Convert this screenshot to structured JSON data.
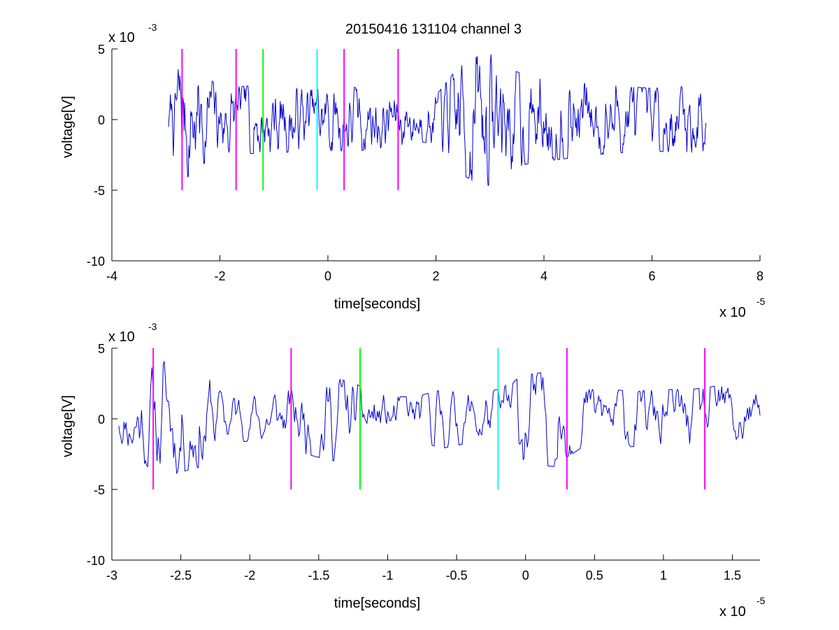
{
  "chart_data": [
    {
      "type": "line",
      "title": "20150416 131104 channel 3",
      "xlabel": "time[seconds]",
      "ylabel": "voltage[V]",
      "x_multiplier": "x 10",
      "x_exponent": "-5",
      "y_multiplier": "x 10",
      "y_exponent": "-3",
      "xlim": [
        -4,
        8
      ],
      "ylim": [
        -10,
        5
      ],
      "xticks": [
        -4,
        -2,
        0,
        2,
        4,
        6,
        8
      ],
      "xtick_labels": [
        "-4",
        "-2",
        "0",
        "2",
        "4",
        "6",
        "8"
      ],
      "yticks": [
        -10,
        -5,
        0,
        5
      ],
      "ytick_labels": [
        "-10",
        "-5",
        "0",
        "5"
      ],
      "grid": false,
      "signal": {
        "color": "#0000cc",
        "x_start": -2.95,
        "x_end": 7.0,
        "envelope": [
          [
            -2.95,
            1.2
          ],
          [
            -2.7,
            3.4
          ],
          [
            -2.4,
            2.6
          ],
          [
            -2.0,
            1.8
          ],
          [
            -1.6,
            1.8
          ],
          [
            -1.2,
            1.9
          ],
          [
            -0.8,
            1.8
          ],
          [
            -0.4,
            1.6
          ],
          [
            0.0,
            1.7
          ],
          [
            0.4,
            1.8
          ],
          [
            0.8,
            1.6
          ],
          [
            1.2,
            1.5
          ],
          [
            1.6,
            1.2
          ],
          [
            2.0,
            1.3
          ],
          [
            2.4,
            2.8
          ],
          [
            2.7,
            3.4
          ],
          [
            3.0,
            3.6
          ],
          [
            3.3,
            2.8
          ],
          [
            3.7,
            2.4
          ],
          [
            4.2,
            2.2
          ],
          [
            5.0,
            1.9
          ],
          [
            6.0,
            1.7
          ],
          [
            6.9,
            1.9
          ],
          [
            7.0,
            1.5
          ]
        ]
      },
      "markers": [
        {
          "x": -2.7,
          "color": "#ff00ff"
        },
        {
          "x": -1.7,
          "color": "#ff00ff"
        },
        {
          "x": -1.2,
          "color": "#00ff00"
        },
        {
          "x": -0.2,
          "color": "#00ffff"
        },
        {
          "x": 0.3,
          "color": "#ff00ff"
        },
        {
          "x": 1.3,
          "color": "#ff00ff"
        }
      ],
      "marker_yrange": [
        -5,
        5
      ]
    },
    {
      "type": "line",
      "title": "",
      "xlabel": "time[seconds]",
      "ylabel": "voltage[V]",
      "x_multiplier": "x 10",
      "x_exponent": "-5",
      "y_multiplier": "x 10",
      "y_exponent": "-3",
      "xlim": [
        -3.0,
        1.7
      ],
      "ylim": [
        -10,
        5
      ],
      "xticks": [
        -3,
        -2.5,
        -2,
        -1.5,
        -1,
        -0.5,
        0,
        0.5,
        1,
        1.5
      ],
      "xtick_labels": [
        "-3",
        "-2.5",
        "-2",
        "-1.5",
        "-1",
        "-0.5",
        "0",
        "0.5",
        "1",
        "1.5"
      ],
      "yticks": [
        -10,
        -5,
        0,
        5
      ],
      "ytick_labels": [
        "-10",
        "-5",
        "0",
        "5"
      ],
      "grid": false,
      "signal": {
        "color": "#0000cc",
        "x_start": -2.95,
        "x_end": 1.7,
        "envelope": [
          [
            -2.95,
            1.2
          ],
          [
            -2.8,
            2.2
          ],
          [
            -2.65,
            3.2
          ],
          [
            -2.5,
            2.9
          ],
          [
            -2.35,
            2.6
          ],
          [
            -2.2,
            1.4
          ],
          [
            -2.0,
            1.2
          ],
          [
            -1.8,
            1.3
          ],
          [
            -1.6,
            1.9
          ],
          [
            -1.4,
            2.3
          ],
          [
            -1.2,
            1.8
          ],
          [
            -1.0,
            1.2
          ],
          [
            -0.8,
            1.2
          ],
          [
            -0.6,
            1.6
          ],
          [
            -0.4,
            1.3
          ],
          [
            -0.2,
            1.6
          ],
          [
            0.0,
            2.4
          ],
          [
            0.2,
            2.6
          ],
          [
            0.4,
            1.6
          ],
          [
            0.6,
            1.6
          ],
          [
            0.8,
            1.5
          ],
          [
            1.0,
            1.6
          ],
          [
            1.2,
            1.6
          ],
          [
            1.4,
            1.8
          ],
          [
            1.7,
            1.3
          ]
        ]
      },
      "markers": [
        {
          "x": -2.7,
          "color": "#ff00ff"
        },
        {
          "x": -1.7,
          "color": "#ff00ff"
        },
        {
          "x": -1.2,
          "color": "#00ff00"
        },
        {
          "x": -0.2,
          "color": "#00ffff"
        },
        {
          "x": 0.3,
          "color": "#ff00ff"
        },
        {
          "x": 1.3,
          "color": "#ff00ff"
        }
      ],
      "marker_yrange": [
        -5,
        5
      ]
    }
  ]
}
